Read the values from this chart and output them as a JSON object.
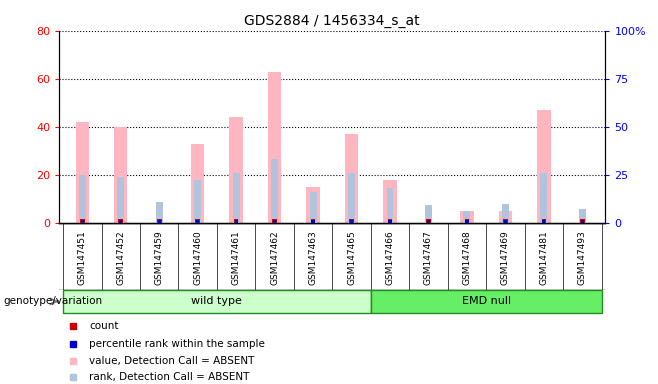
{
  "title": "GDS2884 / 1456334_s_at",
  "samples": [
    "GSM147451",
    "GSM147452",
    "GSM147459",
    "GSM147460",
    "GSM147461",
    "GSM147462",
    "GSM147463",
    "GSM147465",
    "GSM147466",
    "GSM147467",
    "GSM147468",
    "GSM147469",
    "GSM147481",
    "GSM147493"
  ],
  "value_bars": [
    42,
    40,
    0,
    33,
    44,
    63,
    15,
    37,
    18,
    0,
    5,
    5,
    47,
    0
  ],
  "rank_bars": [
    25,
    24,
    11,
    22,
    26,
    33,
    16,
    26,
    18,
    9,
    6,
    10,
    26,
    7
  ],
  "value_color": "#FFB6C1",
  "rank_color": "#B0C4DE",
  "count_color": "#CC0000",
  "prank_color": "#0000CC",
  "ylim_left": [
    0,
    80
  ],
  "ylim_right": [
    0,
    100
  ],
  "yticks_left": [
    0,
    20,
    40,
    60,
    80
  ],
  "yticks_right": [
    0,
    25,
    50,
    75,
    100
  ],
  "group_ranges": {
    "wild type": [
      0,
      7
    ],
    "EMD null": [
      8,
      13
    ]
  },
  "group_colors": {
    "wild type": "#CCFFCC",
    "EMD null": "#66EE66"
  },
  "group_border_color": "#228B22",
  "group_header": "genotype/variation",
  "legend_items": [
    {
      "label": "count",
      "color": "#CC0000"
    },
    {
      "label": "percentile rank within the sample",
      "color": "#0000CC"
    },
    {
      "label": "value, Detection Call = ABSENT",
      "color": "#FFB6C1"
    },
    {
      "label": "rank, Detection Call = ABSENT",
      "color": "#B0C4DE"
    }
  ],
  "bar_width": 0.35,
  "rank_bar_width": 0.18,
  "tiny_bar_width": 0.12,
  "dotted_grid_color": "#000000",
  "plot_bg_color": "#FFFFFF",
  "xaxis_bg_color": "#D3D3D3"
}
